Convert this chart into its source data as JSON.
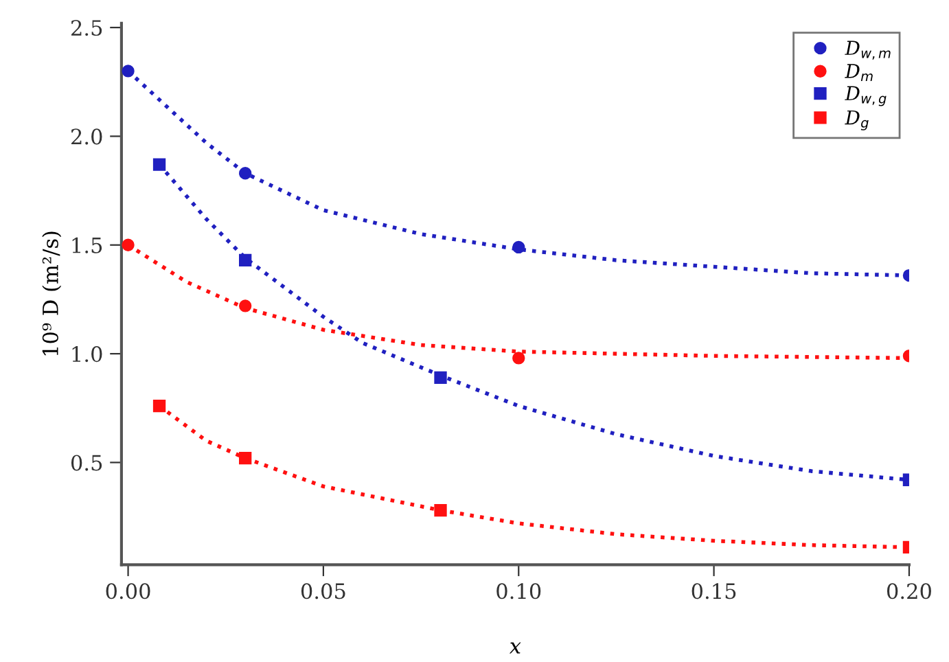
{
  "chart_data": {
    "type": "scatter",
    "xlabel": "x",
    "ylabel": "10⁹ D (m²/s)",
    "xlim": [
      -0.0017,
      0.2
    ],
    "ylim": [
      0.03,
      2.52
    ],
    "xticks": [
      {
        "value": 0,
        "label": "0.00"
      },
      {
        "value": 0.05,
        "label": "0.05"
      },
      {
        "value": 0.1,
        "label": "0.10"
      },
      {
        "value": 0.15,
        "label": "0.15"
      },
      {
        "value": 0.2,
        "label": "0.20"
      }
    ],
    "yticks": [
      {
        "value": 0.5,
        "label": "0.5"
      },
      {
        "value": 1,
        "label": "1.0"
      },
      {
        "value": 1.5,
        "label": "1.5"
      },
      {
        "value": 2,
        "label": "2.0"
      },
      {
        "value": 2.5,
        "label": "2.5"
      }
    ],
    "grid": false,
    "legend": "top right",
    "series": [
      {
        "name": "D$_{w,m}$",
        "color": "#2020c0",
        "marker": "circle",
        "x": [
          0,
          0.03,
          0.1,
          0.2
        ],
        "values": [
          2.3,
          1.83,
          1.49,
          1.36
        ]
      },
      {
        "name": "D$_{m}$",
        "color": "#ff1010",
        "marker": "circle",
        "x": [
          0,
          0.03,
          0.1,
          0.2
        ],
        "values": [
          1.5,
          1.22,
          0.98,
          0.99
        ]
      },
      {
        "name": "D$_{w,g}$",
        "color": "#2020c0",
        "marker": "square",
        "x": [
          0.008,
          0.03,
          0.08,
          0.2
        ],
        "values": [
          1.87,
          1.43,
          0.89,
          0.42
        ]
      },
      {
        "name": "D$_{g}$",
        "color": "#ff1010",
        "marker": "square",
        "x": [
          0.008,
          0.03,
          0.08,
          0.2
        ],
        "values": [
          0.76,
          0.52,
          0.28,
          0.11
        ]
      },
      {
        "type": "line",
        "line_style": "dotted",
        "marker": "none",
        "color": "#2020c0",
        "x": [
          0,
          0.02,
          0.03,
          0.05,
          0.075,
          0.1,
          0.125,
          0.15,
          0.175,
          0.2
        ],
        "values": [
          2.3,
          1.97,
          1.83,
          1.66,
          1.55,
          1.48,
          1.43,
          1.4,
          1.37,
          1.36
        ]
      },
      {
        "type": "line",
        "line_style": "dotted",
        "marker": "none",
        "color": "#ff1010",
        "x": [
          0,
          0.015,
          0.03,
          0.05,
          0.075,
          0.1,
          0.15,
          0.2
        ],
        "values": [
          1.5,
          1.33,
          1.21,
          1.11,
          1.04,
          1.01,
          0.99,
          0.98
        ]
      },
      {
        "type": "line",
        "line_style": "dotted",
        "marker": "none",
        "color": "#2020c0",
        "x": [
          0.008,
          0.02,
          0.03,
          0.05,
          0.06,
          0.08,
          0.1,
          0.125,
          0.15,
          0.175,
          0.2
        ],
        "values": [
          1.87,
          1.62,
          1.44,
          1.17,
          1.05,
          0.9,
          0.76,
          0.63,
          0.53,
          0.46,
          0.42
        ]
      },
      {
        "type": "line",
        "line_style": "dotted",
        "marker": "none",
        "color": "#ff1010",
        "x": [
          0.008,
          0.02,
          0.03,
          0.05,
          0.08,
          0.1,
          0.125,
          0.15,
          0.175,
          0.2
        ],
        "values": [
          0.76,
          0.6,
          0.52,
          0.39,
          0.28,
          0.22,
          0.17,
          0.14,
          0.12,
          0.11
        ]
      }
    ]
  }
}
